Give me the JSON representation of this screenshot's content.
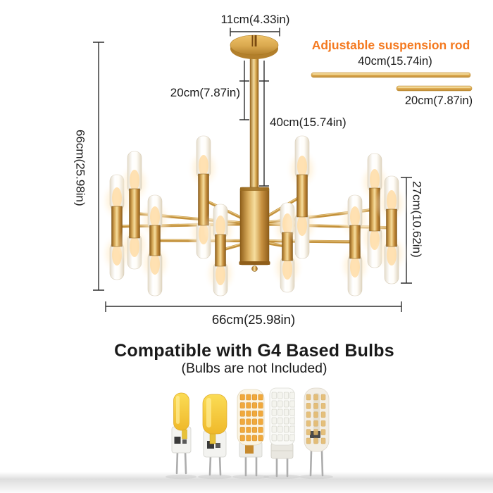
{
  "title_block": {
    "heading": "Compatible with G4 Based Bulbs",
    "subheading": "(Bulbs are not Included)"
  },
  "dimensions": {
    "canopy_width": "11cm(4.33in)",
    "rod_upper_drop": "20cm(7.87in)",
    "rod_total_drop": "40cm(15.74in)",
    "fixture_height": "66cm(25.98in)",
    "body_height": "27cm(10.62in)",
    "fixture_width": "66cm(25.98in)"
  },
  "suspension_rods": {
    "title": "Adjustable suspension rod",
    "long_rod": "40cm(15.74in)",
    "short_rod": "20cm(7.87in)"
  },
  "colors": {
    "accent_orange": "#F4791F",
    "gold": "#D9A850",
    "dimension_line": "#2E2E2E",
    "text": "#1A1A1A"
  },
  "icons": {
    "bulb_types": [
      "g4-cob-compact-bulb",
      "g4-cob-large-bulb",
      "g4-corn-warm-smd-bulb",
      "g4-corn-white-smd-bulb",
      "g4-silicone-smd-bulb"
    ]
  }
}
